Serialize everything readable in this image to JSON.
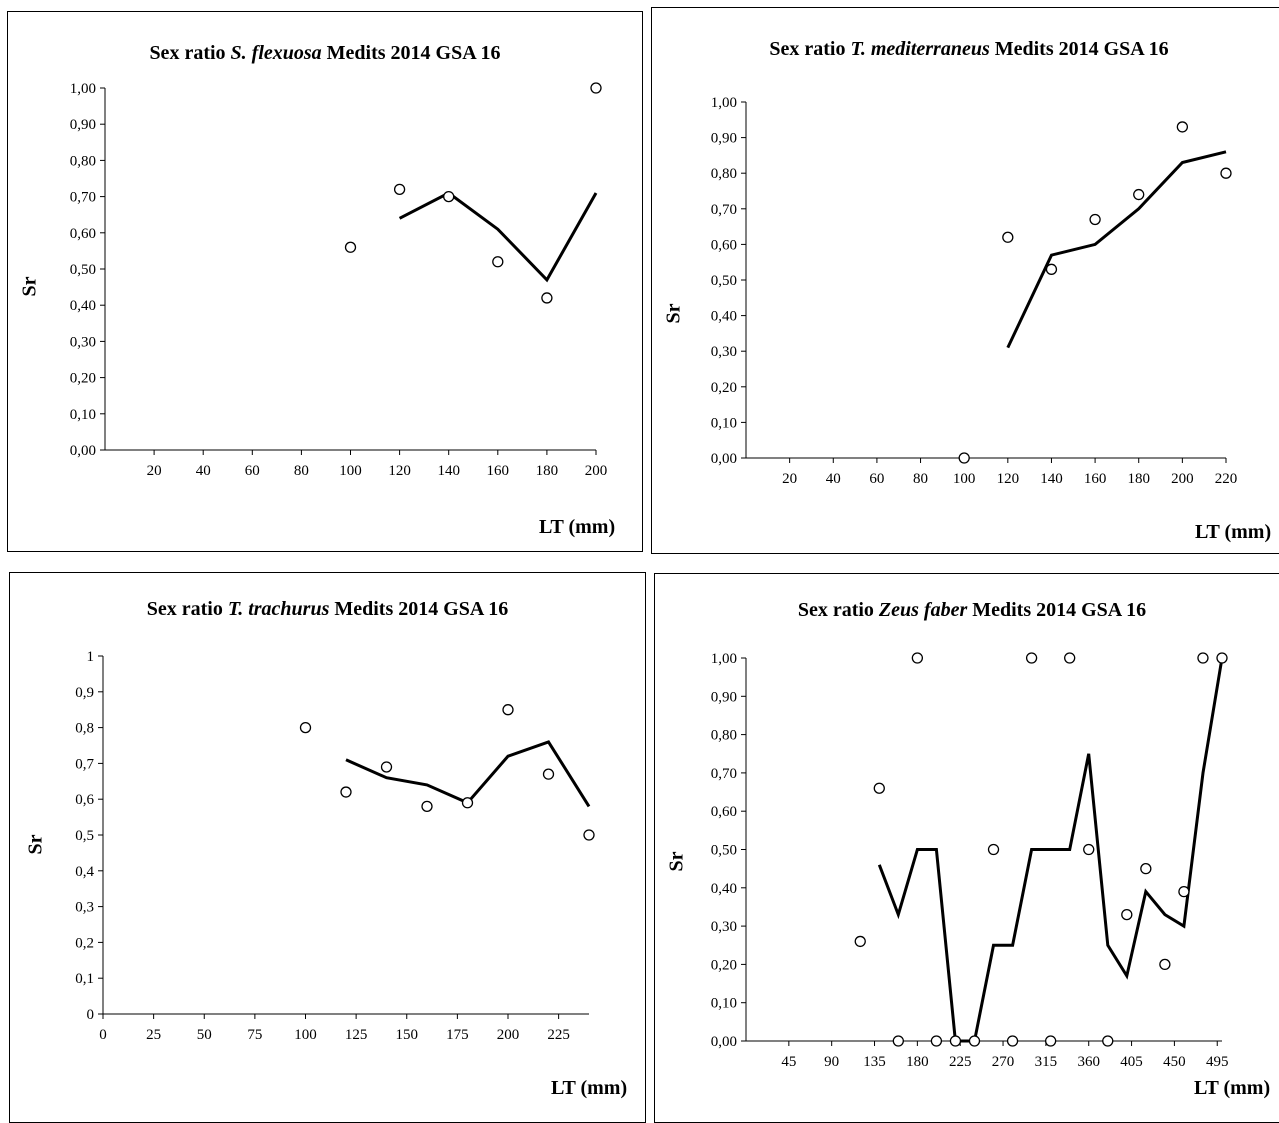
{
  "chart_data": [
    {
      "type": "line",
      "title": {
        "pre": "Sex ratio ",
        "species": "S. flexuosa",
        "post": " Medits 2014 GSA 16"
      },
      "xlabel": "LT (mm)",
      "ylabel": "Sr",
      "xlim": [
        0,
        200
      ],
      "ylim": [
        0,
        1
      ],
      "xticks": [
        20,
        40,
        60,
        80,
        100,
        120,
        140,
        160,
        180,
        200
      ],
      "xtick_labels": [
        "20",
        "40",
        "60",
        "80",
        "100",
        "120",
        "140",
        "160",
        "180",
        "200"
      ],
      "yticks": [
        0,
        0.1,
        0.2,
        0.3,
        0.4,
        0.5,
        0.6,
        0.7,
        0.8,
        0.9,
        1.0
      ],
      "ytick_labels": [
        "0,00",
        "0,10",
        "0,20",
        "0,30",
        "0,40",
        "0,50",
        "0,60",
        "0,70",
        "0,80",
        "0,90",
        "1,00"
      ],
      "series": [
        {
          "kind": "scatter",
          "x": [
            100,
            120,
            140,
            160,
            180,
            200
          ],
          "y": [
            0.56,
            0.72,
            0.7,
            0.52,
            0.42,
            1.0
          ]
        },
        {
          "kind": "line",
          "x": [
            120,
            140,
            160,
            180,
            200
          ],
          "y": [
            0.64,
            0.71,
            0.61,
            0.47,
            0.71
          ]
        }
      ]
    },
    {
      "type": "line",
      "title": {
        "pre": "Sex ratio ",
        "species": "T. mediterraneus",
        "post": " Medits 2014 GSA 16"
      },
      "xlabel": "LT (mm)",
      "ylabel": "Sr",
      "xlim": [
        0,
        220
      ],
      "ylim": [
        0,
        1
      ],
      "xticks": [
        20,
        40,
        60,
        80,
        100,
        120,
        140,
        160,
        180,
        200,
        220
      ],
      "xtick_labels": [
        "20",
        "40",
        "60",
        "80",
        "100",
        "120",
        "140",
        "160",
        "180",
        "200",
        "220"
      ],
      "yticks": [
        0,
        0.1,
        0.2,
        0.3,
        0.4,
        0.5,
        0.6,
        0.7,
        0.8,
        0.9,
        1.0
      ],
      "ytick_labels": [
        "0,00",
        "0,10",
        "0,20",
        "0,30",
        "0,40",
        "0,50",
        "0,60",
        "0,70",
        "0,80",
        "0,90",
        "1,00"
      ],
      "series": [
        {
          "kind": "scatter",
          "x": [
            100,
            120,
            140,
            160,
            180,
            200,
            220
          ],
          "y": [
            0.0,
            0.62,
            0.53,
            0.67,
            0.74,
            0.93,
            0.8
          ]
        },
        {
          "kind": "line",
          "x": [
            120,
            140,
            160,
            180,
            200,
            220
          ],
          "y": [
            0.31,
            0.57,
            0.6,
            0.7,
            0.83,
            0.86
          ]
        }
      ]
    },
    {
      "type": "line",
      "title": {
        "pre": "Sex ratio ",
        "species": "T. trachurus",
        "post": " Medits 2014 GSA 16"
      },
      "xlabel": "LT (mm)",
      "ylabel": "Sr",
      "xlim": [
        0,
        240
      ],
      "ylim": [
        0,
        1
      ],
      "xticks": [
        0,
        25,
        50,
        75,
        100,
        125,
        150,
        175,
        200,
        225
      ],
      "xtick_labels": [
        "0",
        "25",
        "50",
        "75",
        "100",
        "125",
        "150",
        "175",
        "200",
        "225"
      ],
      "yticks": [
        0,
        0.1,
        0.2,
        0.3,
        0.4,
        0.5,
        0.6,
        0.7,
        0.8,
        0.9,
        1.0
      ],
      "ytick_labels": [
        "0",
        "0,1",
        "0,2",
        "0,3",
        "0,4",
        "0,5",
        "0,6",
        "0,7",
        "0,8",
        "0,9",
        "1"
      ],
      "series": [
        {
          "kind": "scatter",
          "x": [
            100,
            120,
            140,
            160,
            180,
            200,
            220,
            240
          ],
          "y": [
            0.8,
            0.62,
            0.69,
            0.58,
            0.59,
            0.85,
            0.67,
            0.5
          ]
        },
        {
          "kind": "line",
          "x": [
            120,
            140,
            160,
            180,
            200,
            220,
            240
          ],
          "y": [
            0.71,
            0.66,
            0.64,
            0.59,
            0.72,
            0.76,
            0.58
          ]
        }
      ]
    },
    {
      "type": "line",
      "title": {
        "pre": "Sex ratio ",
        "species": "Zeus faber",
        "post": " Medits 2014 GSA 16"
      },
      "xlabel": "LT (mm)",
      "ylabel": "Sr",
      "xlim": [
        0,
        500
      ],
      "ylim": [
        0,
        1
      ],
      "xticks": [
        45,
        90,
        135,
        180,
        225,
        270,
        315,
        360,
        405,
        450,
        495
      ],
      "xtick_labels": [
        "45",
        "90",
        "135",
        "180",
        "225",
        "270",
        "315",
        "360",
        "405",
        "450",
        "495"
      ],
      "yticks": [
        0,
        0.1,
        0.2,
        0.3,
        0.4,
        0.5,
        0.6,
        0.7,
        0.8,
        0.9,
        1.0
      ],
      "ytick_labels": [
        "0,00",
        "0,10",
        "0,20",
        "0,30",
        "0,40",
        "0,50",
        "0,60",
        "0,70",
        "0,80",
        "0,90",
        "1,00"
      ],
      "series": [
        {
          "kind": "scatter",
          "x": [
            120,
            140,
            160,
            180,
            200,
            220,
            240,
            260,
            280,
            300,
            320,
            340,
            360,
            380,
            400,
            420,
            440,
            460,
            480,
            500
          ],
          "y": [
            0.26,
            0.66,
            0.0,
            1.0,
            0.0,
            0.0,
            0.0,
            0.5,
            0.0,
            1.0,
            0.0,
            1.0,
            0.5,
            0.0,
            0.33,
            0.45,
            0.2,
            0.39,
            1.0,
            1.0
          ]
        },
        {
          "kind": "line",
          "x": [
            140,
            160,
            180,
            200,
            220,
            240,
            260,
            280,
            300,
            320,
            340,
            360,
            380,
            400,
            420,
            440,
            460,
            480,
            500
          ],
          "y": [
            0.46,
            0.33,
            0.5,
            0.5,
            0.0,
            0.0,
            0.25,
            0.25,
            0.5,
            0.5,
            0.5,
            0.75,
            0.25,
            0.17,
            0.39,
            0.33,
            0.3,
            0.7,
            1.0
          ]
        }
      ]
    }
  ]
}
